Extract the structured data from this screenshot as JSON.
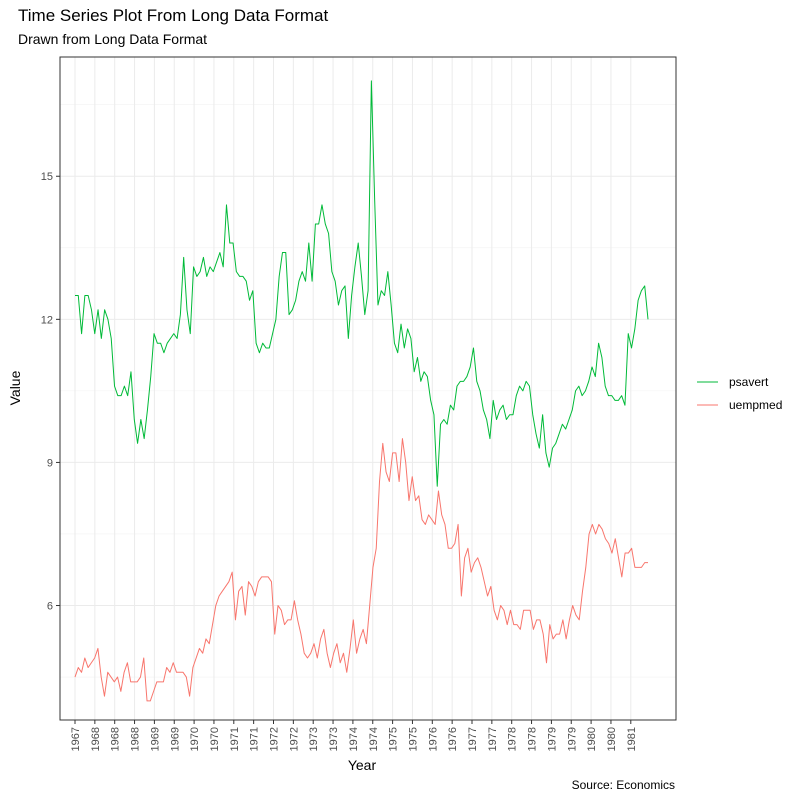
{
  "chart_data": {
    "type": "line",
    "title": "Time Series Plot From Long Data Format",
    "subtitle": "Drawn from Long Data Format",
    "caption": "Source: Economics",
    "xlabel": "Year",
    "ylabel": "Value",
    "x_ticks": [
      "1967",
      "1968",
      "1968",
      "1968",
      "1969",
      "1969",
      "1970",
      "1970",
      "1971",
      "1971",
      "1972",
      "1972",
      "1973",
      "1973",
      "1974",
      "1974",
      "1975",
      "1975",
      "1976",
      "1976",
      "1977",
      "1977",
      "1978",
      "1978",
      "1979",
      "1979",
      "1980",
      "1980",
      "1981"
    ],
    "y_ticks": [
      6,
      9,
      12,
      15
    ],
    "ylim": [
      3.6,
      17.5
    ],
    "grid": true,
    "legend_position": "right",
    "series": [
      {
        "name": "psavert",
        "color": "#00BA38",
        "values": [
          12.5,
          12.5,
          11.7,
          12.5,
          12.5,
          12.2,
          11.7,
          12.2,
          11.6,
          12.2,
          12.0,
          11.6,
          10.6,
          10.4,
          10.4,
          10.6,
          10.4,
          10.9,
          9.9,
          9.4,
          9.9,
          9.5,
          10.1,
          10.8,
          11.7,
          11.5,
          11.5,
          11.3,
          11.5,
          11.6,
          11.7,
          11.6,
          12.1,
          13.3,
          12.2,
          11.7,
          13.1,
          12.9,
          13.0,
          13.3,
          12.9,
          13.1,
          13.0,
          13.2,
          13.4,
          13.1,
          14.4,
          13.6,
          13.6,
          13.0,
          12.9,
          12.9,
          12.8,
          12.4,
          12.6,
          11.5,
          11.3,
          11.5,
          11.4,
          11.4,
          11.7,
          12.0,
          12.9,
          13.4,
          13.4,
          12.1,
          12.2,
          12.4,
          12.8,
          13.0,
          12.8,
          13.6,
          12.8,
          14.0,
          14.0,
          14.4,
          14.0,
          13.8,
          13.0,
          12.8,
          12.3,
          12.6,
          12.7,
          11.6,
          12.5,
          13.1,
          13.6,
          12.9,
          12.1,
          12.6,
          17.0,
          14.5,
          12.3,
          12.6,
          12.5,
          13.0,
          12.3,
          11.5,
          11.3,
          11.9,
          11.4,
          11.8,
          11.6,
          10.9,
          11.2,
          10.7,
          10.9,
          10.8,
          10.3,
          10.0,
          8.5,
          9.8,
          9.9,
          9.8,
          10.2,
          10.1,
          10.6,
          10.7,
          10.7,
          10.8,
          11.0,
          11.4,
          10.7,
          10.5,
          10.1,
          9.9,
          9.5,
          10.3,
          9.9,
          10.1,
          10.2,
          9.9,
          10.0,
          10.0,
          10.4,
          10.6,
          10.5,
          10.7,
          10.6,
          10.0,
          9.6,
          9.3,
          10.0,
          9.2,
          8.9,
          9.3,
          9.4,
          9.6,
          9.8,
          9.7,
          9.9,
          10.1,
          10.5,
          10.6,
          10.4,
          10.5,
          10.7,
          11.0,
          10.8,
          11.5,
          11.2,
          10.6,
          10.4,
          10.4,
          10.3,
          10.3,
          10.4,
          10.2,
          11.7,
          11.4,
          11.8,
          12.4,
          12.6,
          12.7,
          12.0
        ]
      },
      {
        "name": "uempmed",
        "color": "#F8766D",
        "values": [
          4.5,
          4.7,
          4.6,
          4.9,
          4.7,
          4.8,
          4.9,
          5.1,
          4.5,
          4.1,
          4.6,
          4.5,
          4.4,
          4.5,
          4.2,
          4.6,
          4.8,
          4.4,
          4.4,
          4.4,
          4.5,
          4.9,
          4.0,
          4.0,
          4.2,
          4.4,
          4.4,
          4.4,
          4.7,
          4.6,
          4.8,
          4.6,
          4.6,
          4.6,
          4.5,
          4.1,
          4.7,
          4.9,
          5.1,
          5.0,
          5.3,
          5.2,
          5.6,
          6.0,
          6.2,
          6.3,
          6.4,
          6.5,
          6.7,
          5.7,
          6.3,
          6.4,
          5.8,
          6.5,
          6.4,
          6.2,
          6.5,
          6.6,
          6.6,
          6.6,
          6.5,
          5.4,
          6.0,
          5.9,
          5.6,
          5.7,
          5.7,
          6.1,
          5.7,
          5.4,
          5.0,
          4.9,
          5.0,
          5.2,
          4.9,
          5.3,
          5.5,
          5.0,
          4.7,
          5.0,
          5.2,
          4.8,
          5.0,
          4.6,
          5.1,
          5.7,
          5.0,
          5.3,
          5.5,
          5.2,
          6.0,
          6.8,
          7.2,
          8.6,
          9.4,
          8.8,
          8.6,
          9.2,
          9.2,
          8.6,
          9.5,
          9.0,
          8.2,
          8.7,
          8.2,
          8.3,
          7.8,
          7.7,
          7.9,
          7.8,
          7.7,
          8.4,
          7.9,
          7.7,
          7.2,
          7.2,
          7.3,
          7.7,
          6.2,
          7.0,
          7.2,
          6.7,
          6.9,
          7.0,
          6.8,
          6.5,
          6.2,
          6.4,
          5.9,
          5.7,
          6.0,
          5.9,
          5.6,
          5.9,
          5.6,
          5.6,
          5.5,
          5.9,
          5.9,
          5.9,
          5.5,
          5.7,
          5.7,
          5.4,
          4.8,
          5.6,
          5.3,
          5.4,
          5.4,
          5.7,
          5.3,
          5.7,
          6.0,
          5.8,
          5.7,
          6.3,
          6.8,
          7.5,
          7.7,
          7.5,
          7.7,
          7.6,
          7.4,
          7.3,
          7.1,
          7.4,
          7.0,
          6.6,
          7.1,
          7.1,
          7.2,
          6.8,
          6.8,
          6.8,
          6.9,
          6.9
        ]
      }
    ]
  }
}
